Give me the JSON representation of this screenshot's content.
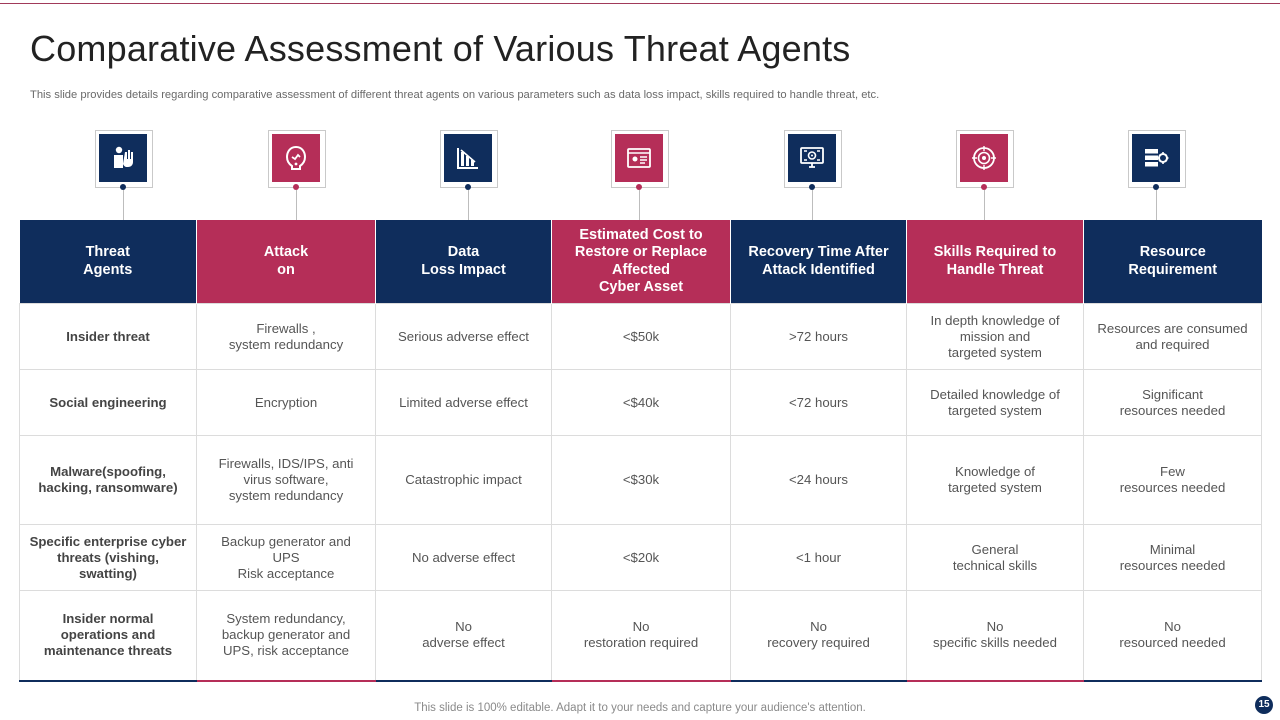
{
  "slide": {
    "title": "Comparative Assessment of Various Threat Agents",
    "subtitle": "This slide provides details regarding comparative assessment of different threat agents on various parameters such as data loss impact, skills required to handle threat, etc.",
    "footer": "This slide is 100% editable. Adapt it to your needs and capture your audience's attention.",
    "page_number": "15"
  },
  "colors": {
    "navy": "#0f2d5c",
    "crimson": "#b52e58"
  },
  "icons": [
    "stop-hand-person-icon",
    "hooded-hacker-icon",
    "decline-bar-chart-icon",
    "id-card-browser-icon",
    "screen-settings-icon",
    "target-skill-icon",
    "server-gear-icon"
  ],
  "table": {
    "headers": [
      "Threat\nAgents",
      "Attack\non",
      "Data\nLoss Impact",
      "Estimated Cost to\nRestore or Replace\nAffected\nCyber Asset",
      "Recovery Time After\nAttack Identified",
      "Skills Required to\nHandle Threat",
      "Resource\nRequirement"
    ],
    "rows": [
      [
        "Insider threat",
        "Firewalls ,\nsystem redundancy",
        "Serious adverse effect",
        "<$50k",
        ">72 hours",
        "In depth knowledge of\nmission and\ntargeted system",
        "Resources are consumed\nand required"
      ],
      [
        "Social engineering",
        "Encryption",
        "Limited adverse effect",
        "<$40k",
        "<72 hours",
        "Detailed knowledge of\ntargeted system",
        "Significant\nresources needed"
      ],
      [
        "Malware(spoofing,\nhacking, ransomware)",
        "Firewalls, IDS/IPS, anti\nvirus software,\nsystem redundancy",
        "Catastrophic impact",
        "<$30k",
        "<24 hours",
        "Knowledge of\ntargeted system",
        "Few\nresources needed"
      ],
      [
        "Specific enterprise cyber\nthreats (vishing,\nswatting)",
        "Backup generator and\nUPS\nRisk acceptance",
        "No adverse effect",
        "<$20k",
        "<1 hour",
        "General\ntechnical skills",
        "Minimal\nresources needed"
      ],
      [
        "Insider normal\noperations and\nmaintenance threats",
        "System redundancy,\nbackup generator and\nUPS, risk acceptance",
        "No\nadverse effect",
        "No\nrestoration required",
        "No\nrecovery required",
        "No\nspecific skills needed",
        "No\nresourced needed"
      ]
    ]
  }
}
